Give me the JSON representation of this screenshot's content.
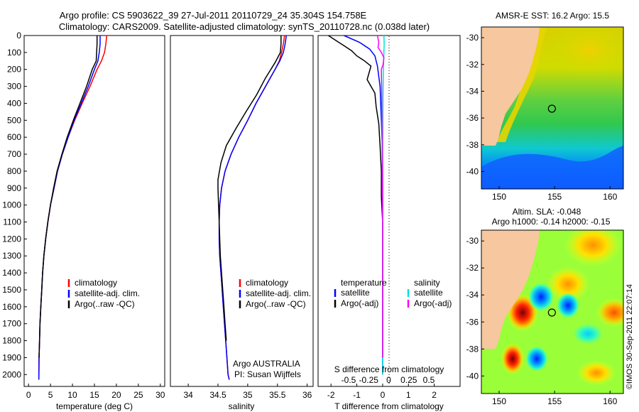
{
  "header": {
    "line1": "Argo profile: CS 5903622_39 27-Jul-2011 20110729_24 35.304S 154.758E",
    "line2": "Climatology: CARS2009. Satellite-adjusted climatology: synTS_20110728.nc (0.038d later)"
  },
  "colors": {
    "climatology": "#ff0000",
    "satellite": "#0000ff",
    "argo": "#000000",
    "sal_satellite": "#00e0e0",
    "sal_argo": "#ff00ff",
    "land": "#f7c79f"
  },
  "chart_data": [
    {
      "type": "line",
      "panel": "temperature",
      "xlabel": "temperature (deg C)",
      "ylabel": "",
      "xlim": [
        -1,
        31
      ],
      "ylim": [
        2070,
        0
      ],
      "xticks": [
        0,
        5,
        10,
        15,
        20,
        25,
        30
      ],
      "yticks": [
        0,
        100,
        200,
        300,
        400,
        500,
        600,
        700,
        800,
        900,
        1000,
        1100,
        1200,
        1300,
        1400,
        1500,
        1600,
        1700,
        1800,
        1900,
        2000
      ],
      "legend": [
        "climatology",
        "satellite-adj. clim.",
        "Argo(..raw -QC)"
      ],
      "series": [
        {
          "name": "climatology",
          "color": "#ff0000",
          "x": [
            17.8,
            17.6,
            17.3,
            16.6,
            15.6,
            14.0,
            12.2,
            10.5,
            9.0,
            7.7,
            6.6,
            5.8,
            5.0,
            4.4,
            3.9,
            3.5,
            3.2,
            3.0,
            2.8,
            2.6,
            2.5,
            2.4,
            2.35
          ],
          "y": [
            0,
            50,
            100,
            150,
            200,
            300,
            400,
            500,
            600,
            700,
            800,
            900,
            1000,
            1100,
            1200,
            1300,
            1400,
            1500,
            1600,
            1700,
            1800,
            1900,
            2030
          ]
        },
        {
          "name": "satellite-adj. clim.",
          "color": "#0000ff",
          "x": [
            16.3,
            16.3,
            16.1,
            15.8,
            15.0,
            13.6,
            12.0,
            10.4,
            9.0,
            7.7,
            6.6,
            5.8,
            5.0,
            4.4,
            3.9,
            3.5,
            3.2,
            3.0,
            2.8,
            2.6,
            2.5,
            2.4,
            2.35
          ],
          "y": [
            0,
            50,
            100,
            150,
            200,
            300,
            400,
            500,
            600,
            700,
            800,
            900,
            1000,
            1100,
            1200,
            1300,
            1400,
            1500,
            1600,
            1700,
            1800,
            1900,
            2030
          ]
        },
        {
          "name": "Argo(..raw -QC)",
          "color": "#000000",
          "x": [
            15.6,
            15.6,
            15.5,
            15.4,
            14.5,
            13.2,
            11.7,
            10.2,
            8.8,
            7.6,
            6.5,
            5.7,
            5.0,
            4.4,
            3.9,
            3.5,
            3.2,
            3.0,
            2.8,
            2.6,
            2.5,
            2.4
          ],
          "y": [
            0,
            50,
            100,
            150,
            200,
            300,
            400,
            500,
            600,
            700,
            800,
            900,
            1000,
            1100,
            1200,
            1300,
            1400,
            1500,
            1600,
            1700,
            1800,
            1900
          ]
        }
      ]
    },
    {
      "type": "line",
      "panel": "salinity",
      "xlabel": "salinity",
      "xlim": [
        33.7,
        36.1
      ],
      "ylim": [
        2070,
        0
      ],
      "xticks": [
        34,
        34.5,
        35,
        35.5,
        36
      ],
      "legend": [
        "climatology",
        "satellite-adj. clim.",
        "Argo(..raw -QC)"
      ],
      "annotation": [
        "Argo AUSTRALIA",
        "PI: Susan Wijffels"
      ],
      "series": [
        {
          "name": "climatology",
          "color": "#ff0000",
          "x": [
            35.62,
            35.6,
            35.57,
            35.53,
            35.46,
            35.3,
            35.14,
            35.0,
            34.85,
            34.72,
            34.62,
            34.56,
            34.53,
            34.52,
            34.52,
            34.53,
            34.55,
            34.57,
            34.59,
            34.61,
            34.63,
            34.65,
            34.67,
            34.69
          ],
          "y": [
            0,
            50,
            100,
            150,
            200,
            300,
            400,
            500,
            600,
            700,
            800,
            900,
            1000,
            1100,
            1200,
            1300,
            1400,
            1500,
            1600,
            1700,
            1800,
            1900,
            2000,
            2030
          ]
        },
        {
          "name": "satellite-adj. clim.",
          "color": "#0000ff",
          "x": [
            35.65,
            35.63,
            35.6,
            35.54,
            35.46,
            35.3,
            35.14,
            35.0,
            34.85,
            34.72,
            34.62,
            34.56,
            34.53,
            34.52,
            34.52,
            34.53,
            34.55,
            34.57,
            34.59,
            34.61,
            34.63,
            34.65,
            34.67,
            34.69
          ],
          "y": [
            0,
            50,
            100,
            150,
            200,
            300,
            400,
            500,
            600,
            700,
            800,
            900,
            1000,
            1100,
            1200,
            1300,
            1400,
            1500,
            1600,
            1700,
            1800,
            1900,
            2000,
            2030
          ]
        },
        {
          "name": "Argo(..raw -QC)",
          "color": "#000000",
          "x": [
            35.56,
            35.56,
            35.55,
            35.46,
            35.3,
            35.15,
            34.97,
            34.8,
            34.64,
            34.55,
            34.5,
            34.5,
            34.51,
            34.52,
            34.53,
            34.54,
            34.56,
            34.58,
            34.6,
            34.62,
            34.64
          ],
          "y": [
            0,
            50,
            100,
            160,
            250,
            350,
            450,
            550,
            650,
            750,
            850,
            900,
            1000,
            1100,
            1200,
            1300,
            1400,
            1500,
            1600,
            1700,
            1800
          ]
        }
      ]
    },
    {
      "type": "line",
      "panel": "difference",
      "xlabel": "T difference from climatology",
      "xlabel_top": "S difference from climatology",
      "xlim": [
        -2.5,
        3
      ],
      "ylim": [
        2070,
        0
      ],
      "xticks": [
        -2,
        -1,
        0,
        1,
        2
      ],
      "xticks_top_values": [
        -0.5,
        -0.25,
        0,
        0.25,
        0.5
      ],
      "xticks_top_labels": [
        "-0.5",
        "-0.25",
        "0",
        "0.25",
        "0.5"
      ],
      "legend_titles": [
        "temperature",
        "salinity"
      ],
      "legend": [
        "satellite",
        "Argo(-adj)",
        "satellite",
        "Argo(-adj)"
      ],
      "series": [
        {
          "name": "satellite",
          "color": "#0000ff",
          "x": [
            -1.5,
            -0.9,
            -0.5,
            -0.3,
            -0.2,
            -0.1,
            -0.05,
            0,
            0,
            0,
            0,
            0
          ],
          "y": [
            0,
            40,
            80,
            120,
            180,
            300,
            500,
            700,
            900,
            1200,
            1600,
            2000
          ]
        },
        {
          "name": "Argo(-adj)",
          "color": "#000000",
          "x": [
            -2.1,
            -1.8,
            -1.5,
            -1.2,
            -1.0,
            -0.7,
            -0.45,
            -0.6,
            -0.3,
            -0.25,
            -0.15,
            -0.1,
            -0.05,
            -0.05,
            0,
            0,
            0
          ],
          "y": [
            0,
            30,
            60,
            90,
            120,
            150,
            180,
            260,
            340,
            420,
            520,
            650,
            800,
            950,
            1100,
            1500,
            1900
          ]
        },
        {
          "name": "satellite",
          "color": "#00e0e0",
          "x": [
            0.05,
            0.06,
            0.05,
            0.04,
            0.03,
            0.02,
            0.01,
            0.01,
            0,
            0,
            0,
            0
          ],
          "y": [
            0,
            50,
            100,
            150,
            200,
            300,
            450,
            600,
            800,
            1100,
            1500,
            2000
          ]
        },
        {
          "name": "Argo(-adj)",
          "color": "#ff00ff",
          "x": [
            -0.2,
            -0.15,
            -0.18,
            -0.05,
            0.05,
            0.02,
            -0.05,
            -0.04,
            -0.02,
            0,
            0,
            0
          ],
          "y": [
            0,
            40,
            70,
            100,
            130,
            170,
            200,
            300,
            600,
            1000,
            1500,
            1900
          ]
        }
      ]
    },
    {
      "type": "heatmap",
      "panel": "sst-map",
      "title": "AMSR-E SST: 16.2  Argo: 15.5",
      "xticks": [
        150,
        155,
        160
      ],
      "yticks": [
        -30,
        -32,
        -34,
        -36,
        -38,
        -40
      ],
      "xlim": [
        148.4,
        161.2
      ],
      "ylim": [
        -41.3,
        -29.2
      ],
      "marker": {
        "lon": 154.758,
        "lat": -35.304
      }
    },
    {
      "type": "heatmap",
      "panel": "sla-map",
      "title_line1": "Altim. SLA: -0.048",
      "title_line2": "Argo h1000: -0.14 h2000: -0.15",
      "xticks": [
        150,
        155,
        160
      ],
      "yticks": [
        -30,
        -32,
        -34,
        -36,
        -38,
        -40
      ],
      "xlim": [
        148.4,
        161.2
      ],
      "ylim": [
        -41.3,
        -29.2
      ],
      "marker": {
        "lon": 154.758,
        "lat": -35.304
      }
    }
  ],
  "stamp": "©IMOS 30-Sep-2011 22:07:14"
}
